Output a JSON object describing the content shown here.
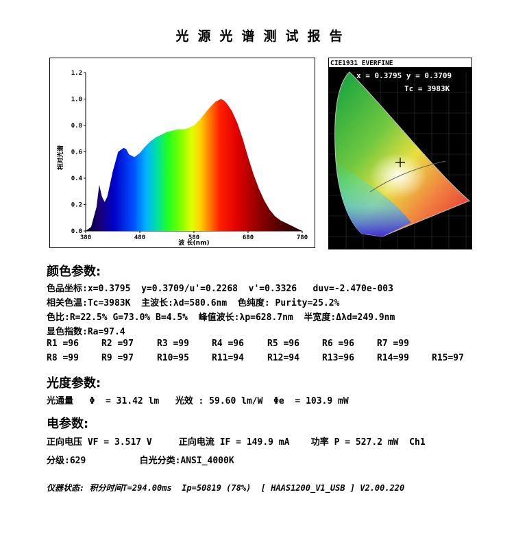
{
  "report_title": "光源光谱测试报告",
  "spectrum": {
    "ylabel": "相对光谱",
    "xlabel": "波 长(nm)"
  },
  "chart_data": [
    {
      "type": "area",
      "xlabel": "波 长(nm)",
      "ylabel": "相对光谱",
      "xlim": [
        380,
        780
      ],
      "ylim": [
        0,
        1.2
      ],
      "x_ticks": [
        "380",
        "480",
        "580",
        "680",
        "780"
      ],
      "y_ticks": [
        "0.0",
        "0.2",
        "0.4",
        "0.6",
        "0.8",
        "1.0",
        "1.2"
      ],
      "grid": false,
      "x": [
        380,
        390,
        400,
        405,
        410,
        415,
        420,
        430,
        440,
        450,
        455,
        460,
        470,
        480,
        490,
        500,
        510,
        520,
        530,
        540,
        550,
        560,
        570,
        580,
        590,
        600,
        610,
        620,
        630,
        635,
        640,
        650,
        660,
        670,
        680,
        690,
        700,
        710,
        720,
        730,
        740,
        750,
        760,
        770,
        780
      ],
      "y": [
        0.0,
        0.03,
        0.18,
        0.35,
        0.26,
        0.22,
        0.26,
        0.45,
        0.6,
        0.63,
        0.62,
        0.58,
        0.56,
        0.59,
        0.64,
        0.68,
        0.71,
        0.73,
        0.75,
        0.76,
        0.77,
        0.77,
        0.78,
        0.8,
        0.84,
        0.89,
        0.94,
        0.98,
        1.0,
        0.99,
        0.97,
        0.91,
        0.82,
        0.7,
        0.56,
        0.43,
        0.32,
        0.23,
        0.16,
        0.11,
        0.08,
        0.06,
        0.04,
        0.02,
        0.0
      ]
    },
    {
      "type": "scatter",
      "title": "CIE1931 EVERFINE",
      "coord_text": "x = 0.3795 y = 0.3709",
      "cct_text": "Tc = 3983K",
      "point": {
        "x": 0.3795,
        "y": 0.3709
      }
    }
  ],
  "color": {
    "heading": "颜色参数:",
    "line1": "色品坐标:x=0.3795  y=0.3709/u'=0.2268  v'=0.3326   duv=-2.470e-003",
    "line2": "相关色温:Tc=3983K  主波长:λd=580.6nm  色纯度: Purity=25.2%",
    "line3": "色比:R=22.5% G=73.0% B=4.5%  峰值波长:λp=628.7nm  半宽度:Δλd=249.9nm",
    "line4": "显色指数:Ra=97.4",
    "ri_row1": [
      "R1 =96",
      "R2 =97",
      "R3 =99",
      "R4 =96",
      "R5 =96",
      "R6 =96",
      "R7 =99"
    ],
    "ri_row2": [
      "R8 =99",
      "R9 =97",
      "R10=95",
      "R11=94",
      "R12=94",
      "R13=96",
      "R14=99",
      "R15=97"
    ]
  },
  "photometric": {
    "heading": "光度参数:",
    "line": "光通量   Φ  = 31.42 lm   光效 : 59.60 lm/W  Φe  = 103.9 mW"
  },
  "electrical": {
    "heading": "电参数:",
    "line1": "正向电压 VF = 3.517 V     正向电流 IF = 149.9 mA    功率 P = 527.2 mW  Ch1",
    "line2": "分级:629          白光分类:ANSI_4000K"
  },
  "footer": "仪器状态: 积分时间T=294.00ms  Ip=50819 (78%)  [ HAAS1200_V1_USB ] V2.00.220"
}
